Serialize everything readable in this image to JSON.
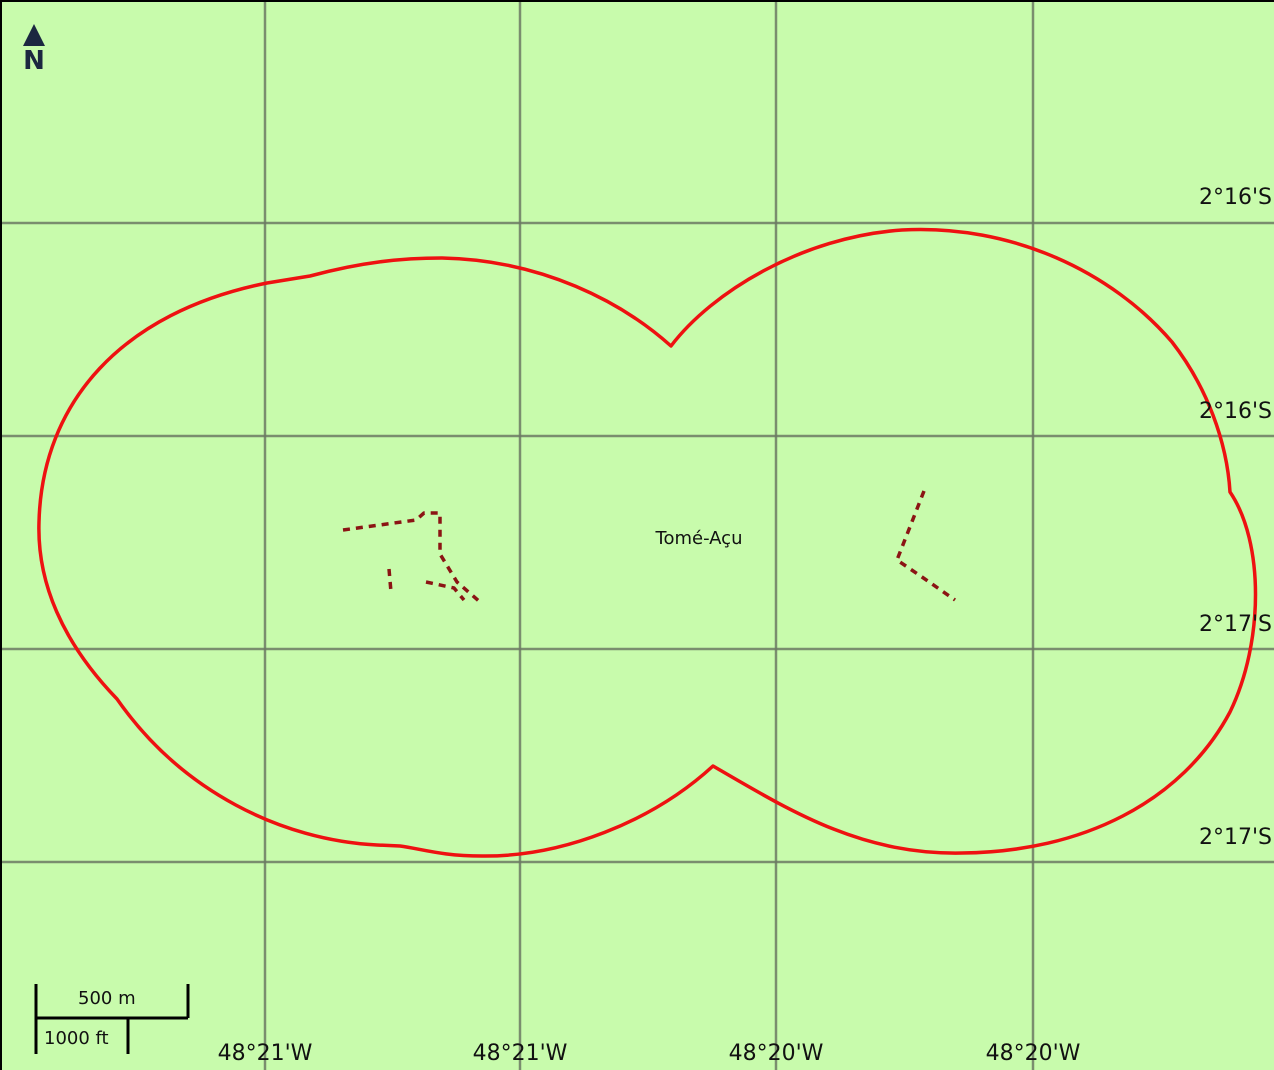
{
  "map": {
    "place_name": "Tomé-Açu",
    "north_label": "N",
    "north_arrow_icon": "north-arrow-icon",
    "latitude_labels": [
      "2°16'S",
      "2°16'S",
      "2°17'S",
      "2°17'S"
    ],
    "longitude_labels": [
      "48°21'W",
      "48°21'W",
      "48°20'W",
      "48°20'W"
    ],
    "scale_bar": {
      "metric_label": "500 m",
      "imperial_label": "1000 ft"
    },
    "colors": {
      "background": "#c8fbac",
      "boundary": "#ee1111",
      "roads": "#8b1414",
      "grid": "#6d7a64"
    }
  }
}
